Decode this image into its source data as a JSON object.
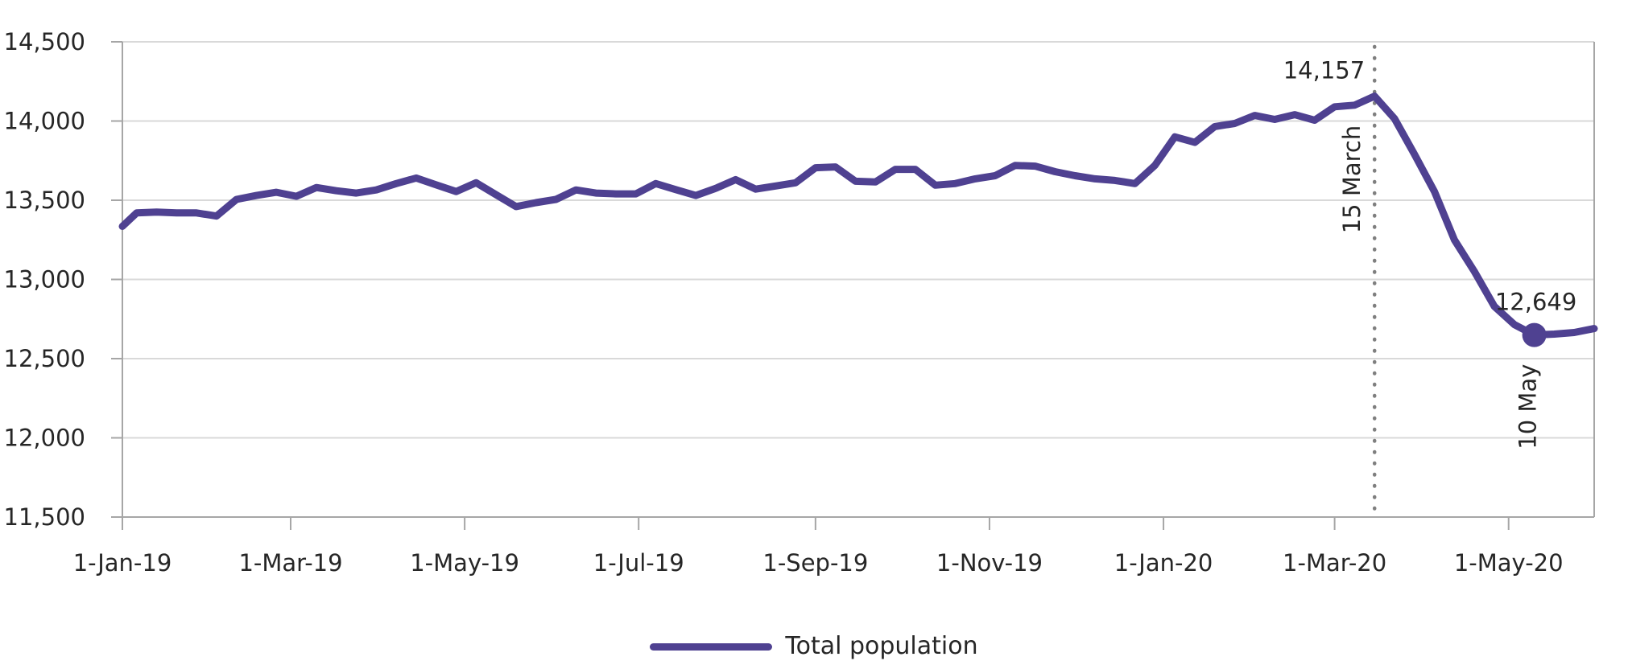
{
  "chart_data": {
    "type": "line",
    "title": "",
    "xlabel": "",
    "ylabel": "",
    "ylim": [
      11500,
      14500
    ],
    "ytick_step": 500,
    "grid": true,
    "legend_position": "bottom-center",
    "x_domain": [
      "2019-01-01",
      "2020-05-31"
    ],
    "y_tick_labels": [
      "14,500",
      "14,000",
      "13,500",
      "13,000",
      "12,500",
      "12,000",
      "11,500"
    ],
    "y_tick_values": [
      14500,
      14000,
      13500,
      13000,
      12500,
      12000,
      11500
    ],
    "x_ticks": [
      {
        "label": "1-Jan-19",
        "date": "2019-01-01"
      },
      {
        "label": "1-Mar-19",
        "date": "2019-03-01"
      },
      {
        "label": "1-May-19",
        "date": "2019-05-01"
      },
      {
        "label": "1-Jul-19",
        "date": "2019-07-01"
      },
      {
        "label": "1-Sep-19",
        "date": "2019-09-01"
      },
      {
        "label": "1-Nov-19",
        "date": "2019-11-01"
      },
      {
        "label": "1-Jan-20",
        "date": "2020-01-01"
      },
      {
        "label": "1-Mar-20",
        "date": "2020-03-01"
      },
      {
        "label": "1-May-20",
        "date": "2020-05-01"
      }
    ],
    "series": [
      {
        "name": "Total population",
        "color": "#4F4191",
        "points": [
          [
            "2019-01-01",
            13335
          ],
          [
            "2019-01-06",
            13420
          ],
          [
            "2019-01-13",
            13425
          ],
          [
            "2019-01-20",
            13420
          ],
          [
            "2019-01-27",
            13420
          ],
          [
            "2019-02-03",
            13400
          ],
          [
            "2019-02-10",
            13505
          ],
          [
            "2019-02-17",
            13530
          ],
          [
            "2019-02-24",
            13550
          ],
          [
            "2019-03-03",
            13525
          ],
          [
            "2019-03-10",
            13580
          ],
          [
            "2019-03-17",
            13560
          ],
          [
            "2019-03-24",
            13545
          ],
          [
            "2019-03-31",
            13565
          ],
          [
            "2019-04-07",
            13605
          ],
          [
            "2019-04-14",
            13640
          ],
          [
            "2019-04-21",
            13597
          ],
          [
            "2019-04-28",
            13555
          ],
          [
            "2019-05-05",
            13610
          ],
          [
            "2019-05-12",
            13535
          ],
          [
            "2019-05-19",
            13460
          ],
          [
            "2019-05-26",
            13485
          ],
          [
            "2019-06-02",
            13505
          ],
          [
            "2019-06-09",
            13565
          ],
          [
            "2019-06-16",
            13545
          ],
          [
            "2019-06-23",
            13540
          ],
          [
            "2019-06-30",
            13540
          ],
          [
            "2019-07-07",
            13605
          ],
          [
            "2019-07-14",
            13567
          ],
          [
            "2019-07-21",
            13530
          ],
          [
            "2019-07-28",
            13575
          ],
          [
            "2019-08-04",
            13630
          ],
          [
            "2019-08-11",
            13570
          ],
          [
            "2019-08-18",
            13590
          ],
          [
            "2019-08-25",
            13610
          ],
          [
            "2019-09-01",
            13705
          ],
          [
            "2019-09-08",
            13710
          ],
          [
            "2019-09-15",
            13620
          ],
          [
            "2019-09-22",
            13615
          ],
          [
            "2019-09-29",
            13695
          ],
          [
            "2019-10-06",
            13695
          ],
          [
            "2019-10-13",
            13595
          ],
          [
            "2019-10-20",
            13605
          ],
          [
            "2019-10-27",
            13635
          ],
          [
            "2019-11-03",
            13655
          ],
          [
            "2019-11-10",
            13720
          ],
          [
            "2019-11-17",
            13715
          ],
          [
            "2019-11-24",
            13680
          ],
          [
            "2019-12-01",
            13655
          ],
          [
            "2019-12-08",
            13635
          ],
          [
            "2019-12-15",
            13625
          ],
          [
            "2019-12-22",
            13605
          ],
          [
            "2019-12-29",
            13720
          ],
          [
            "2020-01-05",
            13900
          ],
          [
            "2020-01-12",
            13865
          ],
          [
            "2020-01-19",
            13965
          ],
          [
            "2020-01-26",
            13985
          ],
          [
            "2020-02-02",
            14035
          ],
          [
            "2020-02-09",
            14010
          ],
          [
            "2020-02-16",
            14040
          ],
          [
            "2020-02-23",
            14005
          ],
          [
            "2020-03-01",
            14090
          ],
          [
            "2020-03-08",
            14100
          ],
          [
            "2020-03-15",
            14157
          ],
          [
            "2020-03-22",
            14015
          ],
          [
            "2020-03-29",
            13790
          ],
          [
            "2020-04-05",
            13555
          ],
          [
            "2020-04-12",
            13250
          ],
          [
            "2020-04-19",
            13050
          ],
          [
            "2020-04-26",
            12830
          ],
          [
            "2020-05-03",
            12715
          ],
          [
            "2020-05-10",
            12649
          ],
          [
            "2020-05-17",
            12655
          ],
          [
            "2020-05-24",
            12665
          ],
          [
            "2020-05-31",
            12690
          ]
        ]
      }
    ],
    "annotations": {
      "peak_value_label": {
        "text": "14,157",
        "date": "2020-03-15",
        "value": 14157
      },
      "vline": {
        "label": "15 March",
        "date": "2020-03-15",
        "style": "dotted"
      },
      "min_value_label": {
        "text": "12,649",
        "date": "2020-05-10",
        "value": 12649,
        "marker": true
      },
      "min_date_label": {
        "label": "10 May",
        "date": "2020-05-10"
      }
    },
    "colors": {
      "line": "#4F4191",
      "grid": "#D9D9D9",
      "axis": "#A6A6A6",
      "text": "#262626",
      "dotted_line": "#7F7F7F"
    }
  },
  "legend": {
    "label": "Total population"
  }
}
